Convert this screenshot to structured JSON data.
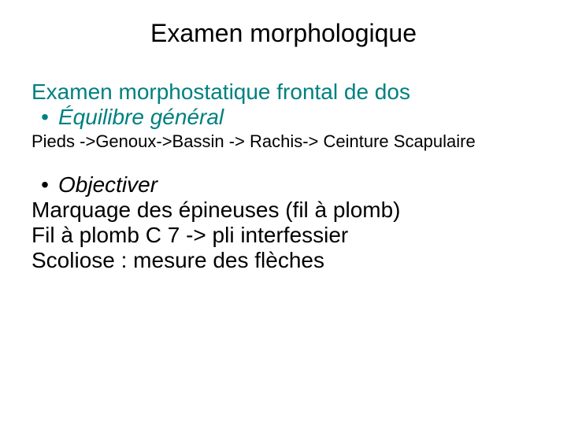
{
  "title": "Examen morphologique",
  "section1": {
    "heading": "Examen morphostatique frontal de dos",
    "bullet_symbol": "•",
    "bullet_label": "Équilibre général",
    "chain": "Pieds ->Genoux->Bassin -> Rachis-> Ceinture Scapulaire"
  },
  "section2": {
    "bullet_symbol": "•",
    "bullet_label": "Objectiver",
    "line1": "Marquage des épineuses (fil à plomb)",
    "line2": "Fil à plomb C 7 -> pli interfessier",
    "line3": "Scoliose : mesure des flèches"
  },
  "colors": {
    "accent": "#008080",
    "text": "#000000",
    "background": "#ffffff"
  },
  "typography": {
    "title_size_pt": 32,
    "heading_size_pt": 28,
    "small_size_pt": 22,
    "body_size_pt": 28,
    "font_family": "Arial"
  }
}
